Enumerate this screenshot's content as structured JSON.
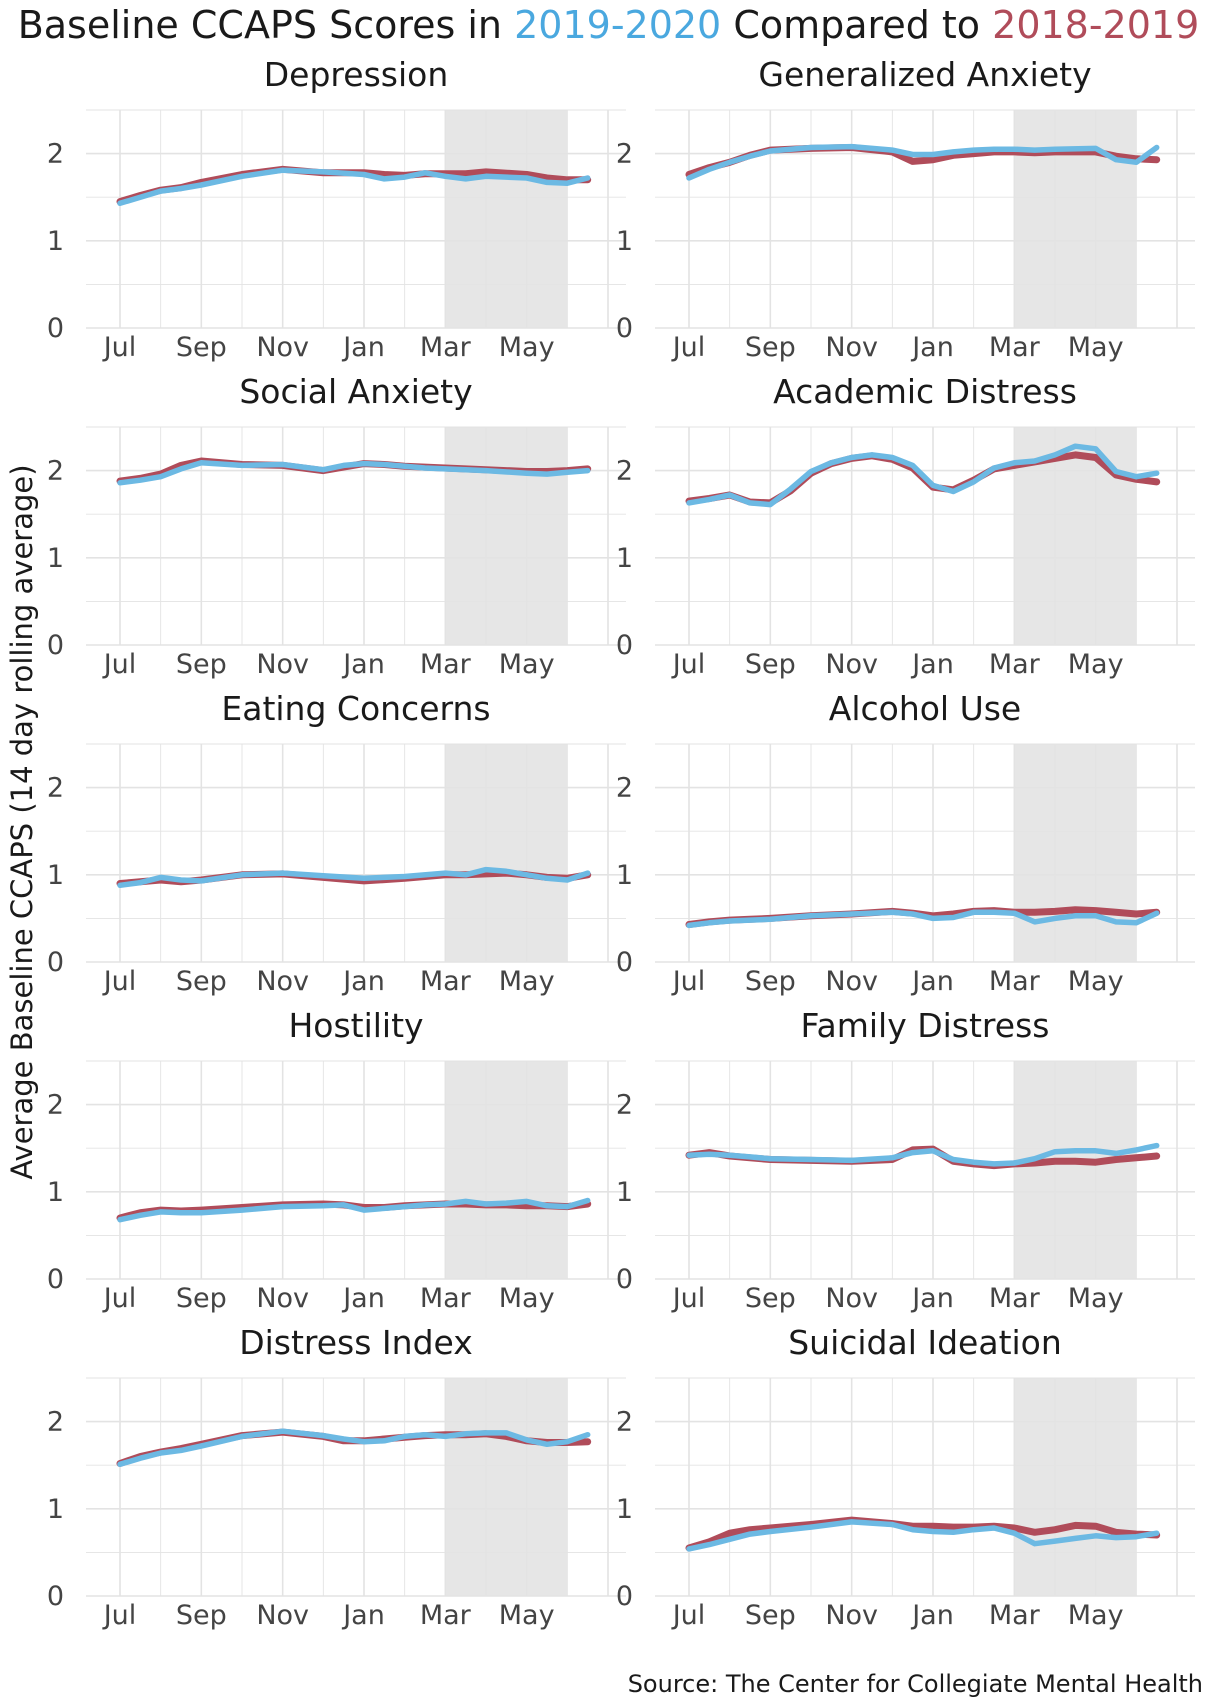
{
  "title": {
    "prefix": "Baseline CCAPS Scores in ",
    "year_current": "2019-2020",
    "middle": " Compared to ",
    "year_prior": "2018-2019"
  },
  "y_axis_label": "Average Baseline CCAPS (14 day rolling average)",
  "source": "Source: The Center for Collegiate Mental Health",
  "colors": {
    "series_2019_2020": "#6cb9e3",
    "series_2018_2019": "#b04c5a",
    "title_2019_2020": "#4aa8df",
    "title_2018_2019": "#b04c5a",
    "shade": "#e6e6e6",
    "grid": "#e3e3e3"
  },
  "chart_data": {
    "type": "line",
    "layout": "faceted 5x2 small multiples",
    "x_ticks": [
      "Jul",
      "Sep",
      "Nov",
      "Jan",
      "Mar",
      "May"
    ],
    "x_range_months": [
      0,
      12
    ],
    "shaded_interval_months": [
      8,
      11
    ],
    "y_ticks": [
      0,
      1,
      2
    ],
    "ylim": [
      0,
      2.5
    ],
    "series_names": [
      "2019-2020",
      "2018-2019"
    ],
    "panels": [
      {
        "name": "Depression",
        "x": [
          0,
          0.5,
          1,
          1.5,
          2,
          3,
          4,
          5,
          6,
          6.5,
          7,
          7.5,
          8,
          8.5,
          9,
          10,
          10.5,
          11,
          11.5
        ],
        "series": [
          {
            "name": "2019-2020",
            "values": [
              1.43,
              1.5,
              1.57,
              1.6,
              1.64,
              1.74,
              1.81,
              1.79,
              1.76,
              1.71,
              1.73,
              1.78,
              1.74,
              1.71,
              1.74,
              1.72,
              1.67,
              1.66,
              1.72
            ]
          },
          {
            "name": "2018-2019",
            "values": [
              1.45,
              1.52,
              1.58,
              1.61,
              1.67,
              1.76,
              1.82,
              1.78,
              1.78,
              1.76,
              1.75,
              1.77,
              1.77,
              1.77,
              1.79,
              1.76,
              1.72,
              1.7,
              1.7
            ]
          }
        ]
      },
      {
        "name": "Generalized Anxiety",
        "x": [
          0,
          0.5,
          1,
          1.5,
          2,
          3,
          4,
          5,
          5.5,
          6,
          6.5,
          7,
          7.5,
          8,
          8.5,
          9,
          10,
          10.5,
          11,
          11.5
        ],
        "series": [
          {
            "name": "2019-2020",
            "values": [
              1.72,
              1.82,
              1.9,
              1.97,
              2.03,
              2.07,
              2.08,
              2.04,
              1.99,
              1.99,
              2.02,
              2.04,
              2.05,
              2.05,
              2.04,
              2.05,
              2.06,
              1.93,
              1.9,
              2.07
            ]
          },
          {
            "name": "2018-2019",
            "values": [
              1.76,
              1.84,
              1.9,
              1.98,
              2.04,
              2.06,
              2.07,
              2.02,
              1.91,
              1.93,
              1.98,
              2.0,
              2.02,
              2.02,
              2.01,
              2.02,
              2.02,
              1.97,
              1.94,
              1.93
            ]
          }
        ]
      },
      {
        "name": "Social Anxiety",
        "x": [
          0,
          0.5,
          1,
          1.5,
          2,
          3,
          4,
          5,
          5.5,
          6,
          6.5,
          7,
          7.5,
          8,
          9,
          10,
          10.5,
          11,
          11.5
        ],
        "series": [
          {
            "name": "2019-2020",
            "values": [
              1.86,
              1.89,
              1.93,
              2.02,
              2.09,
              2.06,
              2.07,
              2.01,
              2.06,
              2.08,
              2.07,
              2.05,
              2.03,
              2.02,
              2.0,
              1.97,
              1.96,
              1.98,
              2.0
            ]
          },
          {
            "name": "2018-2019",
            "values": [
              1.88,
              1.91,
              1.96,
              2.06,
              2.11,
              2.07,
              2.06,
              2.0,
              2.04,
              2.08,
              2.07,
              2.05,
              2.04,
              2.03,
              2.01,
              1.99,
              1.99,
              2.0,
              2.02
            ]
          }
        ]
      },
      {
        "name": "Academic Distress",
        "x": [
          0,
          0.5,
          1,
          1.5,
          2,
          2.5,
          3,
          3.5,
          4,
          4.5,
          5,
          5.5,
          6,
          6.5,
          7,
          7.5,
          8,
          8.5,
          9,
          9.5,
          10,
          10.5,
          11,
          11.5
        ],
        "series": [
          {
            "name": "2019-2020",
            "values": [
              1.63,
              1.67,
              1.72,
              1.63,
              1.61,
              1.79,
              1.99,
              2.09,
              2.15,
              2.18,
              2.15,
              2.06,
              1.83,
              1.76,
              1.87,
              2.03,
              2.09,
              2.11,
              2.18,
              2.28,
              2.25,
              1.99,
              1.93,
              1.97
            ]
          },
          {
            "name": "2018-2019",
            "values": [
              1.65,
              1.68,
              1.72,
              1.64,
              1.63,
              1.77,
              1.97,
              2.08,
              2.14,
              2.17,
              2.13,
              2.03,
              1.81,
              1.78,
              1.89,
              2.02,
              2.06,
              2.1,
              2.14,
              2.18,
              2.15,
              1.95,
              1.9,
              1.87
            ]
          }
        ]
      },
      {
        "name": "Eating Concerns",
        "x": [
          0,
          0.5,
          1,
          1.5,
          2,
          3,
          4,
          5,
          6,
          7,
          8,
          8.5,
          9,
          9.5,
          10,
          10.5,
          11,
          11.5
        ],
        "series": [
          {
            "name": "2019-2020",
            "values": [
              0.88,
              0.91,
              0.97,
              0.94,
              0.93,
              1.0,
              1.02,
              0.99,
              0.96,
              0.98,
              1.02,
              1.0,
              1.06,
              1.04,
              1.0,
              0.96,
              0.94,
              1.02
            ]
          },
          {
            "name": "2018-2019",
            "values": [
              0.9,
              0.92,
              0.94,
              0.92,
              0.94,
              1.0,
              1.01,
              0.97,
              0.93,
              0.96,
              1.0,
              1.0,
              1.01,
              1.02,
              1.0,
              0.97,
              0.96,
              1.0
            ]
          }
        ]
      },
      {
        "name": "Alcohol Use",
        "x": [
          0,
          0.5,
          1,
          1.5,
          2,
          3,
          4,
          5,
          5.5,
          6,
          6.5,
          7,
          7.5,
          8,
          8.5,
          9,
          9.5,
          10,
          10.5,
          11,
          11.5
        ],
        "series": [
          {
            "name": "2019-2020",
            "values": [
              0.42,
              0.45,
              0.47,
              0.48,
              0.49,
              0.53,
              0.55,
              0.57,
              0.55,
              0.5,
              0.51,
              0.57,
              0.57,
              0.56,
              0.46,
              0.5,
              0.53,
              0.53,
              0.46,
              0.45,
              0.56
            ]
          },
          {
            "name": "2018-2019",
            "values": [
              0.43,
              0.46,
              0.48,
              0.49,
              0.5,
              0.53,
              0.55,
              0.58,
              0.56,
              0.53,
              0.55,
              0.58,
              0.59,
              0.57,
              0.57,
              0.58,
              0.6,
              0.59,
              0.57,
              0.55,
              0.57
            ]
          }
        ]
      },
      {
        "name": "Hostility",
        "x": [
          0,
          0.5,
          1,
          1.5,
          2,
          3,
          4,
          5,
          5.5,
          6,
          6.5,
          7,
          7.5,
          8,
          8.5,
          9,
          9.5,
          10,
          10.5,
          11,
          11.5
        ],
        "series": [
          {
            "name": "2019-2020",
            "values": [
              0.68,
              0.73,
              0.77,
              0.76,
              0.76,
              0.79,
              0.83,
              0.84,
              0.85,
              0.79,
              0.81,
              0.83,
              0.85,
              0.86,
              0.89,
              0.86,
              0.87,
              0.89,
              0.84,
              0.83,
              0.9
            ]
          },
          {
            "name": "2018-2019",
            "values": [
              0.7,
              0.76,
              0.79,
              0.78,
              0.79,
              0.82,
              0.85,
              0.86,
              0.85,
              0.82,
              0.82,
              0.84,
              0.85,
              0.86,
              0.86,
              0.85,
              0.85,
              0.84,
              0.84,
              0.83,
              0.86
            ]
          }
        ]
      },
      {
        "name": "Family Distress",
        "x": [
          0,
          0.5,
          1,
          1.5,
          2,
          3,
          4,
          5,
          5.5,
          6,
          6.5,
          7,
          7.5,
          8,
          8.5,
          9,
          9.5,
          10,
          10.5,
          11,
          11.5
        ],
        "series": [
          {
            "name": "2019-2020",
            "values": [
              1.42,
              1.43,
              1.42,
              1.4,
              1.38,
              1.37,
              1.36,
              1.39,
              1.45,
              1.47,
              1.37,
              1.34,
              1.32,
              1.33,
              1.38,
              1.46,
              1.47,
              1.47,
              1.44,
              1.48,
              1.53
            ]
          },
          {
            "name": "2018-2019",
            "values": [
              1.42,
              1.45,
              1.41,
              1.39,
              1.37,
              1.36,
              1.35,
              1.37,
              1.48,
              1.49,
              1.35,
              1.32,
              1.3,
              1.32,
              1.33,
              1.35,
              1.35,
              1.34,
              1.37,
              1.39,
              1.41
            ]
          }
        ]
      },
      {
        "name": "Distress Index",
        "x": [
          0,
          0.5,
          1,
          1.5,
          2,
          3,
          4,
          5,
          5.5,
          6,
          6.5,
          7,
          7.5,
          8,
          8.5,
          9,
          9.5,
          10,
          10.5,
          11,
          11.5
        ],
        "series": [
          {
            "name": "2019-2020",
            "values": [
              1.51,
              1.58,
              1.64,
              1.67,
              1.72,
              1.83,
              1.89,
              1.84,
              1.8,
              1.77,
              1.78,
              1.83,
              1.85,
              1.83,
              1.86,
              1.87,
              1.87,
              1.79,
              1.74,
              1.77,
              1.85
            ]
          },
          {
            "name": "2018-2019",
            "values": [
              1.52,
              1.6,
              1.65,
              1.69,
              1.74,
              1.84,
              1.88,
              1.83,
              1.78,
              1.78,
              1.8,
              1.82,
              1.84,
              1.85,
              1.85,
              1.86,
              1.83,
              1.78,
              1.76,
              1.76,
              1.77
            ]
          }
        ]
      },
      {
        "name": "Suicidal Ideation",
        "x": [
          0,
          0.5,
          1,
          1.5,
          2,
          3,
          4,
          5,
          5.5,
          6,
          6.5,
          7,
          7.5,
          8,
          8.5,
          9,
          9.5,
          10,
          10.5,
          11,
          11.5
        ],
        "series": [
          {
            "name": "2019-2020",
            "values": [
              0.54,
              0.59,
              0.65,
              0.71,
              0.74,
              0.79,
              0.85,
              0.82,
              0.76,
              0.74,
              0.73,
              0.76,
              0.78,
              0.72,
              0.6,
              0.63,
              0.66,
              0.69,
              0.67,
              0.68,
              0.72
            ]
          },
          {
            "name": "2018-2019",
            "values": [
              0.55,
              0.62,
              0.72,
              0.76,
              0.78,
              0.82,
              0.87,
              0.83,
              0.8,
              0.8,
              0.79,
              0.79,
              0.8,
              0.78,
              0.73,
              0.76,
              0.81,
              0.8,
              0.73,
              0.71,
              0.7
            ]
          }
        ]
      }
    ]
  }
}
